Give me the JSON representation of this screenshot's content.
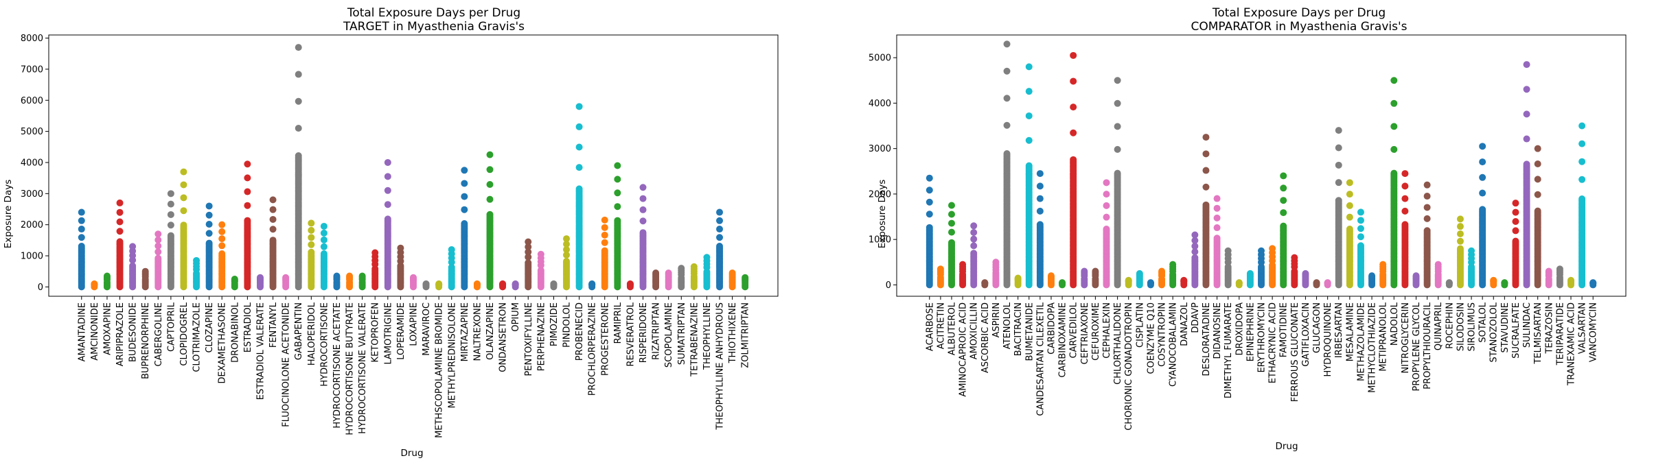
{
  "chart_data": [
    {
      "type": "scatter",
      "title": "Total Exposure Days per Drug",
      "subtitle": "TARGET in Myasthenia Gravis's",
      "xlabel": "Drug",
      "ylabel": "Exposure Days",
      "ylim": [
        -300,
        8100
      ],
      "yticks": [
        0,
        1000,
        2000,
        3000,
        4000,
        5000,
        6000,
        7000,
        8000
      ],
      "grid": false,
      "categories": [
        "AMANTADINE",
        "AMCINONIDE",
        "AMOXAPINE",
        "ARIPIPRAZOLE",
        "BUDESONIDE",
        "BUPRENORPHINE",
        "CABERGOLINE",
        "CAPTOPRIL",
        "CLOPIDOGREL",
        "CLOTRIMAZOLE",
        "CLOZAPINE",
        "DEXAMETHASONE",
        "DRONABINOL",
        "ESTRADIOL",
        "ESTRADIOL VALERATE",
        "FENTANYL",
        "FLUOCINOLONE ACETONIDE",
        "GABAPENTIN",
        "HALOPERIDOL",
        "HYDROCORTISONE",
        "HYDROCORTISONE ACETATE",
        "HYDROCORTISONE BUTYRATE",
        "HYDROCORTISONE VALERATE",
        "KETOPROFEN",
        "LAMOTRIGINE",
        "LOPERAMIDE",
        "LOXAPINE",
        "MARAVIROC",
        "METHSCOPOLAMINE BROMIDE",
        "METHYLPREDNISOLONE",
        "MIRTAZAPINE",
        "NALTREXONE",
        "OLANZAPINE",
        "ONDANSETRON",
        "OPIUM",
        "PENTOXIFYLLINE",
        "PERPHENAZINE",
        "PIMOZIDE",
        "PINDOLOL",
        "PROBENECID",
        "PROCHLORPERAZINE",
        "PROGESTERONE",
        "RAMIPRIL",
        "RESVERATROL",
        "RISPERIDONE",
        "RIZATRIPTAN",
        "SCOPOLAMINE",
        "SUMATRIPTAN",
        "TETRABENAZINE",
        "THEOPHYLLINE",
        "THEOPHYLLINE ANHYDROUS",
        "THIOTHIXENE",
        "ZOLMITRIPTAN"
      ],
      "max_values": [
        2400,
        100,
        350,
        2700,
        1300,
        500,
        1700,
        3000,
        3700,
        850,
        2600,
        2000,
        250,
        3950,
        300,
        2800,
        300,
        7700,
        2050,
        1950,
        350,
        350,
        350,
        1100,
        4000,
        1250,
        300,
        100,
        100,
        1200,
        3750,
        100,
        4250,
        100,
        100,
        1450,
        1050,
        100,
        1550,
        5800,
        100,
        2150,
        3900,
        100,
        3200,
        450,
        450,
        600,
        650,
        950,
        2400,
        450,
        300
      ],
      "colors": [
        "#1f77b4",
        "#ff7f0e",
        "#2ca02c",
        "#d62728",
        "#9467bd",
        "#8c564b",
        "#e377c2",
        "#7f7f7f",
        "#bcbd22",
        "#17becf"
      ]
    },
    {
      "type": "scatter",
      "title": "Total Exposure Days per Drug",
      "subtitle": "COMPARATOR in Myasthenia Gravis's",
      "xlabel": "Drug",
      "ylabel": "Exposure Days",
      "ylim": [
        -250,
        5500
      ],
      "yticks": [
        0,
        1000,
        2000,
        3000,
        4000,
        5000
      ],
      "grid": false,
      "categories": [
        "ACARBOSE",
        "ACITRETIN",
        "ALBUTEROL",
        "AMINOCAPROIC ACID",
        "AMOXICILLIN",
        "ASCORBIC ACID",
        "ASPIRIN",
        "ATENOLOL",
        "BACITRACIN",
        "BUMETANIDE",
        "CANDESARTAN CILEXETIL",
        "CARBIDOPA",
        "CARBINOXAMINE",
        "CARVEDILOL",
        "CEFTRIAXONE",
        "CEFUROXIME",
        "CEPHALEXIN",
        "CHLORTHALIDONE",
        "CHORIONIC GONADOTROPIN",
        "CISPLATIN",
        "COENZYME Q10",
        "COSYNTROPIN",
        "CYANOCOBALAMIN",
        "DANAZOL",
        "DDAVP",
        "DESLORATADINE",
        "DIDANOSINE",
        "DIMETHYL FUMARATE",
        "DROXIDOPA",
        "EPINEPHRINE",
        "ERYTHROMYCIN",
        "ETHACRYNIC ACID",
        "FAMOTIDINE",
        "FERROUS GLUCONATE",
        "GATIFLOXACIN",
        "GLUCAGON",
        "HYDROQUINONE",
        "IRBESARTAN",
        "MESALAMINE",
        "METHAZOLAMIDE",
        "METHYCLOTHIAZIDE",
        "METIPRANOLOL",
        "NADOLOL",
        "NITROGLYCERIN",
        "PROPYLENE GLYCOL",
        "PROPYLTHIOURACIL",
        "QUINAPRIL",
        "ROCEPHIN",
        "SILODOSIN",
        "SIROLIMUS",
        "SOTALOL",
        "STANOZOLOL",
        "STAVUDINE",
        "SUCRALFATE",
        "SULINDAC",
        "TELMISARTAN",
        "TERAZOSIN",
        "TERIPARATIDE",
        "TRANEXAMIC ACID",
        "VALSARTAN",
        "VANCOMYCIN"
      ],
      "max_values": [
        2350,
        350,
        1750,
        450,
        1300,
        50,
        500,
        5300,
        150,
        4800,
        2450,
        200,
        50,
        5050,
        300,
        300,
        2250,
        4500,
        100,
        250,
        50,
        300,
        450,
        100,
        1100,
        3250,
        1900,
        750,
        50,
        250,
        750,
        800,
        2400,
        600,
        250,
        50,
        50,
        3400,
        2250,
        1600,
        200,
        450,
        4500,
        2450,
        200,
        2200,
        450,
        50,
        1450,
        750,
        3050,
        100,
        50,
        1800,
        4850,
        3000,
        300,
        350,
        100,
        3500,
        50
      ],
      "colors": [
        "#1f77b4",
        "#ff7f0e",
        "#2ca02c",
        "#d62728",
        "#9467bd",
        "#8c564b",
        "#e377c2",
        "#7f7f7f",
        "#bcbd22",
        "#17becf"
      ]
    }
  ]
}
